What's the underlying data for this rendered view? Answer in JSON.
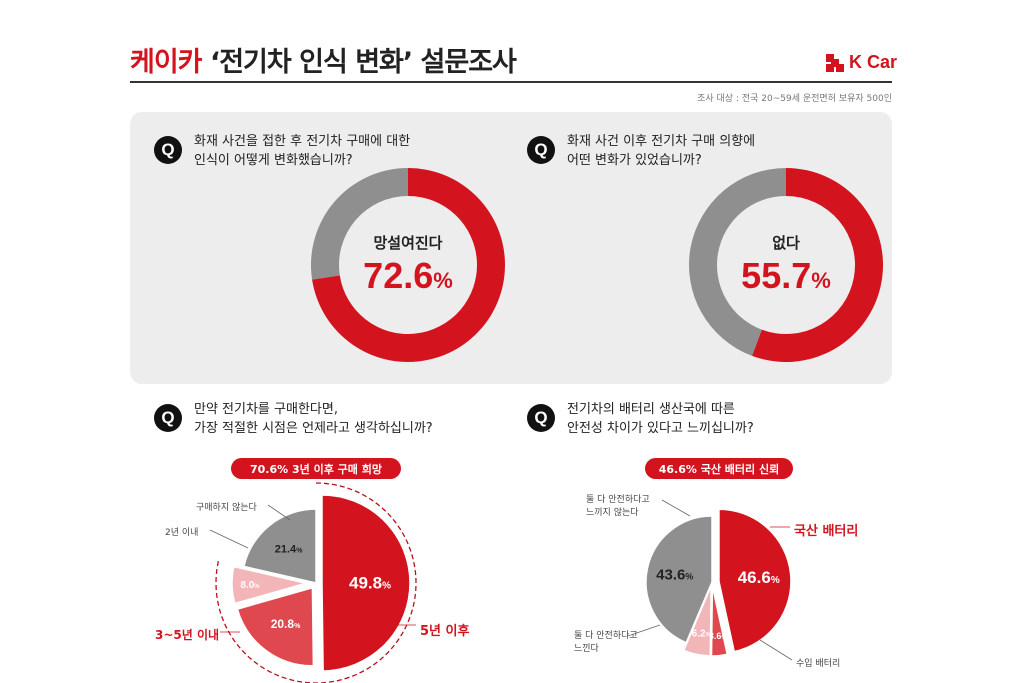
{
  "header": {
    "brand": "케이카",
    "title_rest": "‘전기차 인식 변화’ 설문조사",
    "logo_text": "K Car",
    "survey_target": "조사 대상 : 전국 20~59세 운전면허 보유자 500인"
  },
  "questions": {
    "q1": {
      "icon": "Q",
      "line1": "화재 사건을 접한 후 전기차 구매에 대한",
      "line2": "인식이 어떻게 변화했습니까?"
    },
    "q2": {
      "icon": "Q",
      "line1": "화재 사건 이후 전기차 구매 의향에",
      "line2": "어떤 변화가 있었습니까?"
    },
    "q3": {
      "icon": "Q",
      "line1": "만약 전기차를 구매한다면,",
      "line2": "가장 적절한 시점은 언제라고 생각하십니까?"
    },
    "q4": {
      "icon": "Q",
      "line1": "전기차의 배터리 생산국에 따른",
      "line2": "안전성 차이가 있다고 느끼십니까?"
    }
  },
  "highlights": {
    "q3_pill": "70.6% 3년 이후 구매 희망",
    "q4_pill": "46.6% 국산 배터리 신뢰"
  },
  "colors": {
    "red": "#d3141f",
    "dark_red": "#b5121c",
    "mid_red": "#e0484f",
    "pink": "#f2b5b8",
    "grey": "#8f8f8f",
    "panel": "#ededed"
  },
  "chart_data": [
    {
      "id": "q1_donut",
      "type": "pie",
      "center_label": "망설여진다",
      "center_value": "72.6",
      "unit": "%",
      "slices": [
        {
          "label": "망설여진다",
          "value": 72.6,
          "color": "#d3141f"
        },
        {
          "label": "",
          "value": 27.4,
          "color": "#8f8f8f"
        }
      ]
    },
    {
      "id": "q2_donut",
      "type": "pie",
      "center_label": "없다",
      "center_value": "55.7",
      "unit": "%",
      "slices": [
        {
          "label": "없다",
          "value": 55.7,
          "color": "#d3141f"
        },
        {
          "label": "",
          "value": 44.3,
          "color": "#8f8f8f"
        }
      ]
    },
    {
      "id": "q3_pie",
      "type": "pie",
      "slices": [
        {
          "label": "5년 이후",
          "value": 49.8,
          "value_text": "49.8",
          "color": "#d3141f"
        },
        {
          "label": "3~5년 이내",
          "value": 20.8,
          "value_text": "20.8",
          "color": "#e0484f"
        },
        {
          "label": "2년 이내",
          "value": 8.0,
          "value_text": "8.0",
          "color": "#f2b5b8"
        },
        {
          "label": "구매하지 않는다",
          "value": 21.4,
          "value_text": "21.4",
          "color": "#8f8f8f"
        }
      ]
    },
    {
      "id": "q4_pie",
      "type": "pie",
      "slices": [
        {
          "label": "국산 배터리",
          "value": 46.6,
          "value_text": "46.6",
          "color": "#d3141f"
        },
        {
          "label": "수입 배터리",
          "value": 3.6,
          "value_text": "3.6",
          "color": "#e0484f"
        },
        {
          "label": "둘 다 안전하다고 느낀다",
          "value": 6.2,
          "value_text": "6.2",
          "color": "#f2b5b8"
        },
        {
          "label": "둘 다 안전하다고 느끼지 않는다",
          "value": 43.6,
          "value_text": "43.6",
          "color": "#8f8f8f"
        }
      ]
    }
  ],
  "q3_labels": {
    "not_buy": "구매하지 않는다",
    "within_2": "2년 이내",
    "within_3_5": "3~5년 이내",
    "after_5": "5년 이후"
  },
  "q4_labels": {
    "domestic": "국산 배터리",
    "imported": "수입 배터리",
    "both_unsafe_1": "둘 다 안전하다고",
    "both_unsafe_2": "느끼지 않는다",
    "both_safe_1": "둘 다 안전하다고",
    "both_safe_2": "느낀다"
  }
}
